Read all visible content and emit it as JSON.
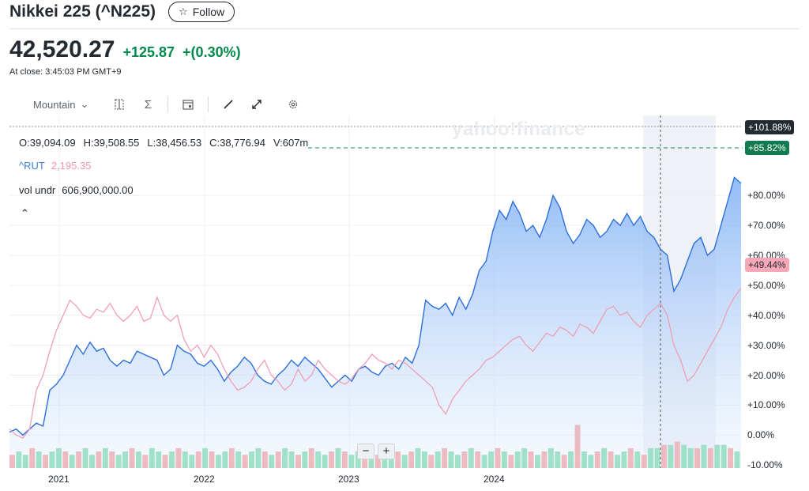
{
  "header": {
    "title": "Nikkei 225 (^N225)",
    "follow_label": "Follow"
  },
  "quote": {
    "price": "42,520.27",
    "change": "+125.87",
    "change_pct": "+(0.30%)",
    "close_time": "At close: 3:45:03 PM GMT+9"
  },
  "toolbar": {
    "range_label": "Mountain",
    "icons": [
      "compare-icon",
      "indicators-icon",
      "events-icon",
      "draw-icon",
      "fullscreen-icon",
      "settings-icon"
    ]
  },
  "legend": {
    "ohlc": [
      "O:39,094.09",
      "H:39,508.55",
      "L:38,456.53",
      "C:38,776.94",
      "V:607m"
    ],
    "compare_symbol": "^RUT",
    "compare_value": "2,195.35",
    "vol_label": "vol undr",
    "vol_value": "606,900,000.00"
  },
  "watermark": "yahoo!finance",
  "zoom": {
    "out": "−",
    "in": "+"
  },
  "colors": {
    "nikkei": "#2d6fdc",
    "rut": "#f298ae",
    "up": "#5fd39a",
    "down": "#f28b8b",
    "positive": "#008a4b",
    "badge_dark": "#232a31",
    "badge_green": "#117a4e",
    "badge_pink": "#f7a8b8"
  },
  "chart_data": {
    "type": "area",
    "y_ticks": [
      "+80.00%",
      "+70.00%",
      "+60.00%",
      "+50.00%",
      "+40.00%",
      "+30.00%",
      "+20.00%",
      "+10.00%",
      "0.00%",
      "-10.00%"
    ],
    "y_tick_values": [
      80,
      70,
      60,
      50,
      40,
      30,
      20,
      10,
      0,
      -10
    ],
    "ylim": [
      -11,
      103
    ],
    "x_ticks": [
      "2021",
      "2022",
      "2023",
      "2024"
    ],
    "badges": [
      {
        "label": "+101.88%",
        "value": 101.88,
        "style": "dark"
      },
      {
        "label": "+85.82%",
        "value": 85.82,
        "style": "green"
      },
      {
        "label": "+49.44%",
        "value": 49.44,
        "style": "pink"
      }
    ],
    "series": [
      {
        "name": "^N225",
        "values": [
          1,
          2,
          0,
          2,
          4,
          3,
          15,
          17,
          20,
          25,
          30,
          27,
          31,
          28,
          29,
          25,
          23,
          25,
          24,
          28,
          27,
          26,
          25,
          20,
          22,
          30,
          28,
          27,
          24,
          23,
          25,
          22,
          18,
          21,
          23,
          26,
          24,
          20,
          18,
          17,
          20,
          22,
          25,
          23,
          26,
          24,
          22,
          19,
          16,
          18,
          20,
          18,
          22,
          23,
          21,
          20,
          23,
          24,
          22,
          26,
          24,
          30,
          45,
          43,
          42,
          44,
          40,
          46,
          42,
          47,
          55,
          58,
          68,
          75,
          72,
          78,
          74,
          68,
          70,
          66,
          72,
          80,
          76,
          68,
          64,
          67,
          72,
          70,
          66,
          68,
          72,
          70,
          74,
          70,
          73,
          68,
          66,
          62,
          60,
          48,
          52,
          58,
          64,
          66,
          60,
          62,
          70,
          78,
          86,
          84
        ]
      },
      {
        "name": "^RUT",
        "values": [
          2,
          0,
          -1,
          2,
          15,
          20,
          28,
          35,
          40,
          45,
          43,
          40,
          39,
          42,
          41,
          44,
          40,
          38,
          40,
          43,
          38,
          39,
          46,
          40,
          38,
          40,
          32,
          28,
          30,
          26,
          30,
          27,
          22,
          18,
          15,
          16,
          18,
          22,
          25,
          20,
          18,
          15,
          17,
          22,
          18,
          20,
          25,
          22,
          20,
          18,
          17,
          19,
          22,
          24,
          27,
          25,
          24,
          22,
          25,
          24,
          22,
          20,
          18,
          16,
          10,
          7,
          12,
          15,
          18,
          20,
          22,
          25,
          26,
          28,
          30,
          32,
          33,
          30,
          28,
          31,
          34,
          33,
          36,
          35,
          33,
          37,
          36,
          34,
          38,
          42,
          43,
          40,
          41,
          38,
          36,
          40,
          42,
          44,
          40,
          30,
          25,
          18,
          20,
          24,
          28,
          32,
          36,
          42,
          46,
          49
        ]
      }
    ],
    "volume": {
      "colors_cycle": "mixed",
      "values": [
        4,
        5,
        4,
        6,
        5,
        4,
        5,
        6,
        5,
        4,
        5,
        6,
        4,
        5,
        6,
        5,
        4,
        5,
        6,
        5,
        4,
        6,
        5,
        4,
        5,
        6,
        5,
        4,
        5,
        6,
        5,
        4,
        5,
        6,
        5,
        4,
        5,
        6,
        5,
        4,
        5,
        6,
        5,
        4,
        5,
        6,
        5,
        4,
        5,
        6,
        5,
        4,
        5,
        6,
        5,
        4,
        5,
        6,
        5,
        4,
        5,
        6,
        5,
        4,
        5,
        6,
        5,
        4,
        5,
        6,
        5,
        4,
        5,
        6,
        5,
        4,
        5,
        6,
        5,
        4,
        5,
        6,
        5,
        4,
        5,
        13,
        5,
        4,
        5,
        6,
        5,
        4,
        5,
        6,
        5,
        4,
        6,
        6,
        7,
        7,
        8,
        7,
        6,
        6,
        7,
        6,
        7,
        7,
        6,
        5
      ]
    }
  }
}
